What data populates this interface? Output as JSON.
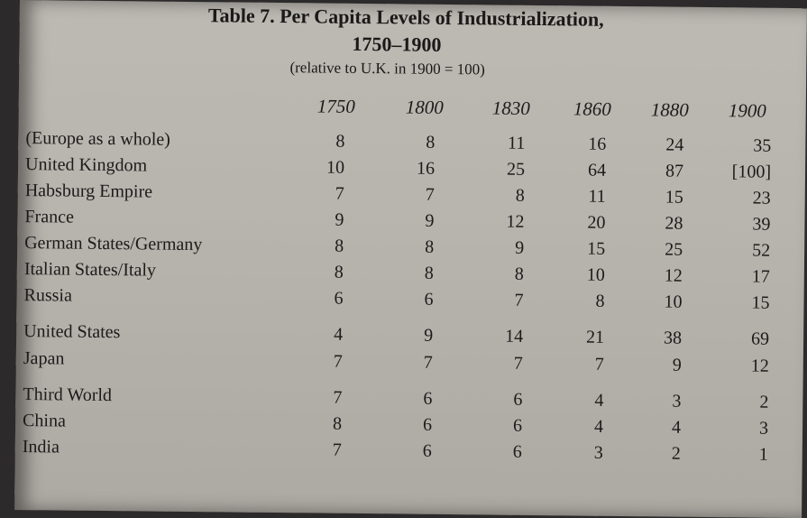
{
  "table": {
    "title": "Table 7. Per Capita Levels of Industrialization,",
    "title_years": "1750–1900",
    "subtitle": "(relative to U.K. in 1900 = 100)",
    "columns": [
      "1750",
      "1800",
      "1830",
      "1860",
      "1880",
      "1900"
    ],
    "rows": [
      {
        "label": "(Europe as a whole)",
        "values": [
          "8",
          "8",
          "11",
          "16",
          "24",
          "35"
        ]
      },
      {
        "label": "United Kingdom",
        "values": [
          "10",
          "16",
          "25",
          "64",
          "87",
          "[100]"
        ]
      },
      {
        "label": "Habsburg Empire",
        "values": [
          "7",
          "7",
          "8",
          "11",
          "15",
          "23"
        ]
      },
      {
        "label": "France",
        "values": [
          "9",
          "9",
          "12",
          "20",
          "28",
          "39"
        ]
      },
      {
        "label": "German States/Germany",
        "values": [
          "8",
          "8",
          "9",
          "15",
          "25",
          "52"
        ]
      },
      {
        "label": "Italian States/Italy",
        "values": [
          "8",
          "8",
          "8",
          "10",
          "12",
          "17"
        ]
      },
      {
        "label": "Russia",
        "values": [
          "6",
          "6",
          "7",
          "8",
          "10",
          "15"
        ]
      },
      {
        "label": "United States",
        "values": [
          "4",
          "9",
          "14",
          "21",
          "38",
          "69"
        ]
      },
      {
        "label": "Japan",
        "values": [
          "7",
          "7",
          "7",
          "7",
          "9",
          "12"
        ]
      },
      {
        "label": "Third World",
        "values": [
          "7",
          "6",
          "6",
          "4",
          "3",
          "2"
        ]
      },
      {
        "label": "China",
        "values": [
          "8",
          "6",
          "6",
          "4",
          "4",
          "3"
        ]
      },
      {
        "label": "India",
        "values": [
          "7",
          "6",
          "6",
          "3",
          "2",
          "1"
        ]
      }
    ]
  }
}
